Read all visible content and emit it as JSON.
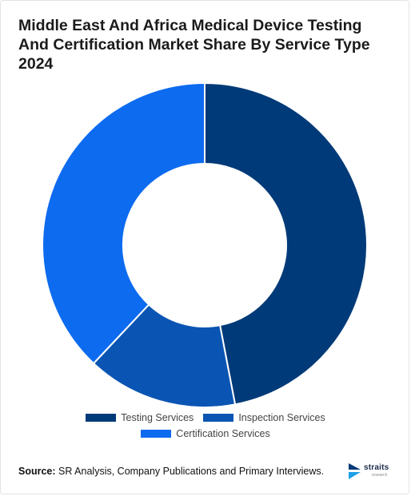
{
  "title": "Middle East And Africa Medical Device Testing And Certification Market Share By Service Type 2024",
  "source_label": "Source:",
  "source_text": "SR Analysis, Company Publications and Primary Interviews.",
  "logo": {
    "name": "straits",
    "sub": "research"
  },
  "colors": {
    "testing": "#003a78",
    "inspection": "#0a55b3",
    "certification": "#0d6bf0",
    "logo_icon": "#1ea0e6"
  },
  "chart_data": {
    "type": "pie",
    "variant": "donut",
    "title": "Middle East And Africa Medical Device Testing And Certification Market Share By Service Type 2024",
    "legend_position": "bottom",
    "categories": [
      "Testing Services",
      "Inspection Services",
      "Certification Services"
    ],
    "values": [
      47,
      15,
      38
    ],
    "unit": "%",
    "colors": [
      "#003a78",
      "#0a55b3",
      "#0d6bf0"
    ]
  }
}
